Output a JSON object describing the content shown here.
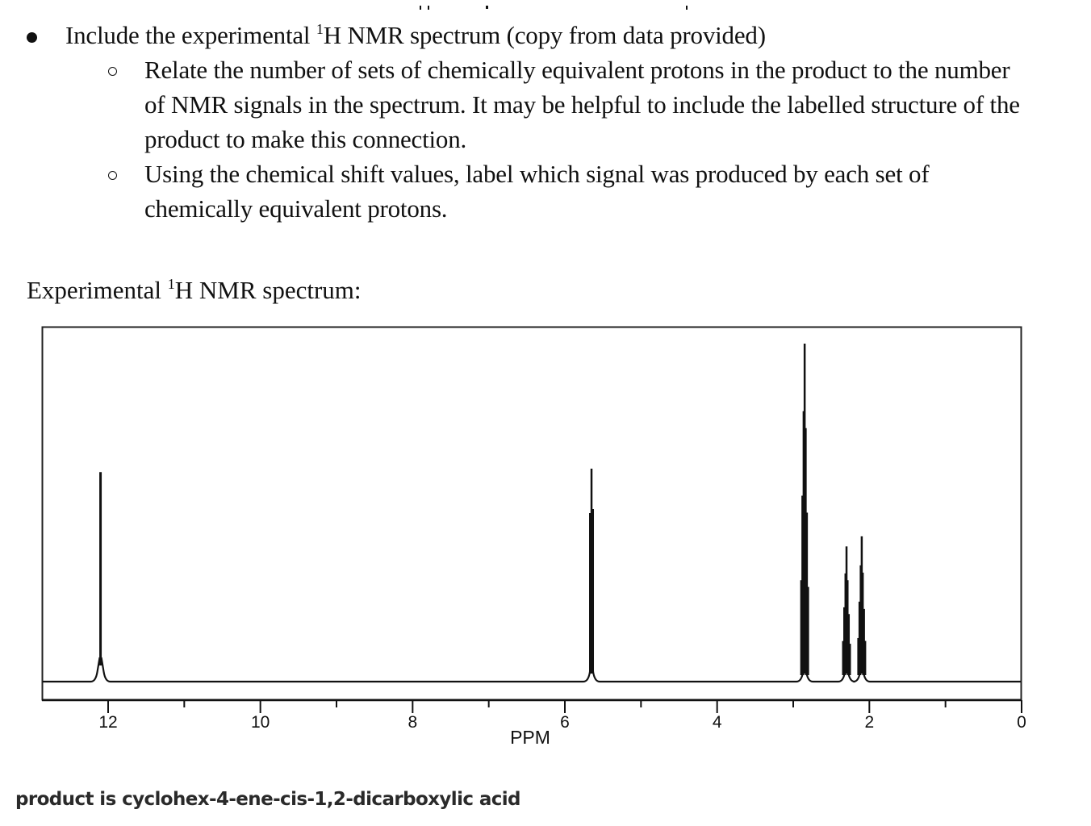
{
  "instructions": {
    "main_bullet": {
      "pre": "Include the experimental ",
      "sup": "1",
      "post": "H NMR spectrum (copy from data provided)"
    },
    "sub_bullets": [
      {
        "lines": [
          "Relate the number of sets of chemically equivalent protons in the product to the number",
          "of NMR signals in the spectrum. It may be helpful to include the labelled structure of the",
          "product to make this connection."
        ]
      },
      {
        "lines": [
          "Using the chemical shift values, label which signal was produced by each set of",
          "chemically equivalent protons."
        ]
      }
    ]
  },
  "spectrum_heading": {
    "pre": "Experimental ",
    "sup": "1",
    "post": "H NMR spectrum:"
  },
  "chart_data": {
    "type": "line",
    "title": "Experimental 1H NMR spectrum",
    "xlabel": "PPM",
    "ylabel": "",
    "x_reversed": true,
    "xlim": [
      13,
      0
    ],
    "x_ticks_major": [
      12,
      10,
      8,
      6,
      4,
      2,
      0
    ],
    "x_tick_labels": [
      "12",
      "10",
      "8",
      "6",
      "4",
      "2",
      "0"
    ],
    "x_ticks_minor": [
      11,
      9,
      7,
      5,
      3,
      1
    ],
    "grid": false,
    "legend": null,
    "peaks": [
      {
        "ppm": 12.1,
        "relative_height": 0.62,
        "multiplicity": "singlet (broad)"
      },
      {
        "ppm": 5.65,
        "relative_height": 0.63,
        "multiplicity": "narrow multiplet"
      },
      {
        "ppm": 2.85,
        "relative_height": 1.0,
        "multiplicity": "multiplet"
      },
      {
        "ppm": 2.3,
        "relative_height": 0.4,
        "multiplicity": "multiplet"
      },
      {
        "ppm": 2.1,
        "relative_height": 0.43,
        "multiplicity": "multiplet"
      }
    ],
    "colors": {
      "trace": "#111111",
      "frame": "#222222"
    }
  },
  "footer": {
    "text": "product is cyclohex-4-ene-cis-1,2-dicarboxylic acid"
  }
}
